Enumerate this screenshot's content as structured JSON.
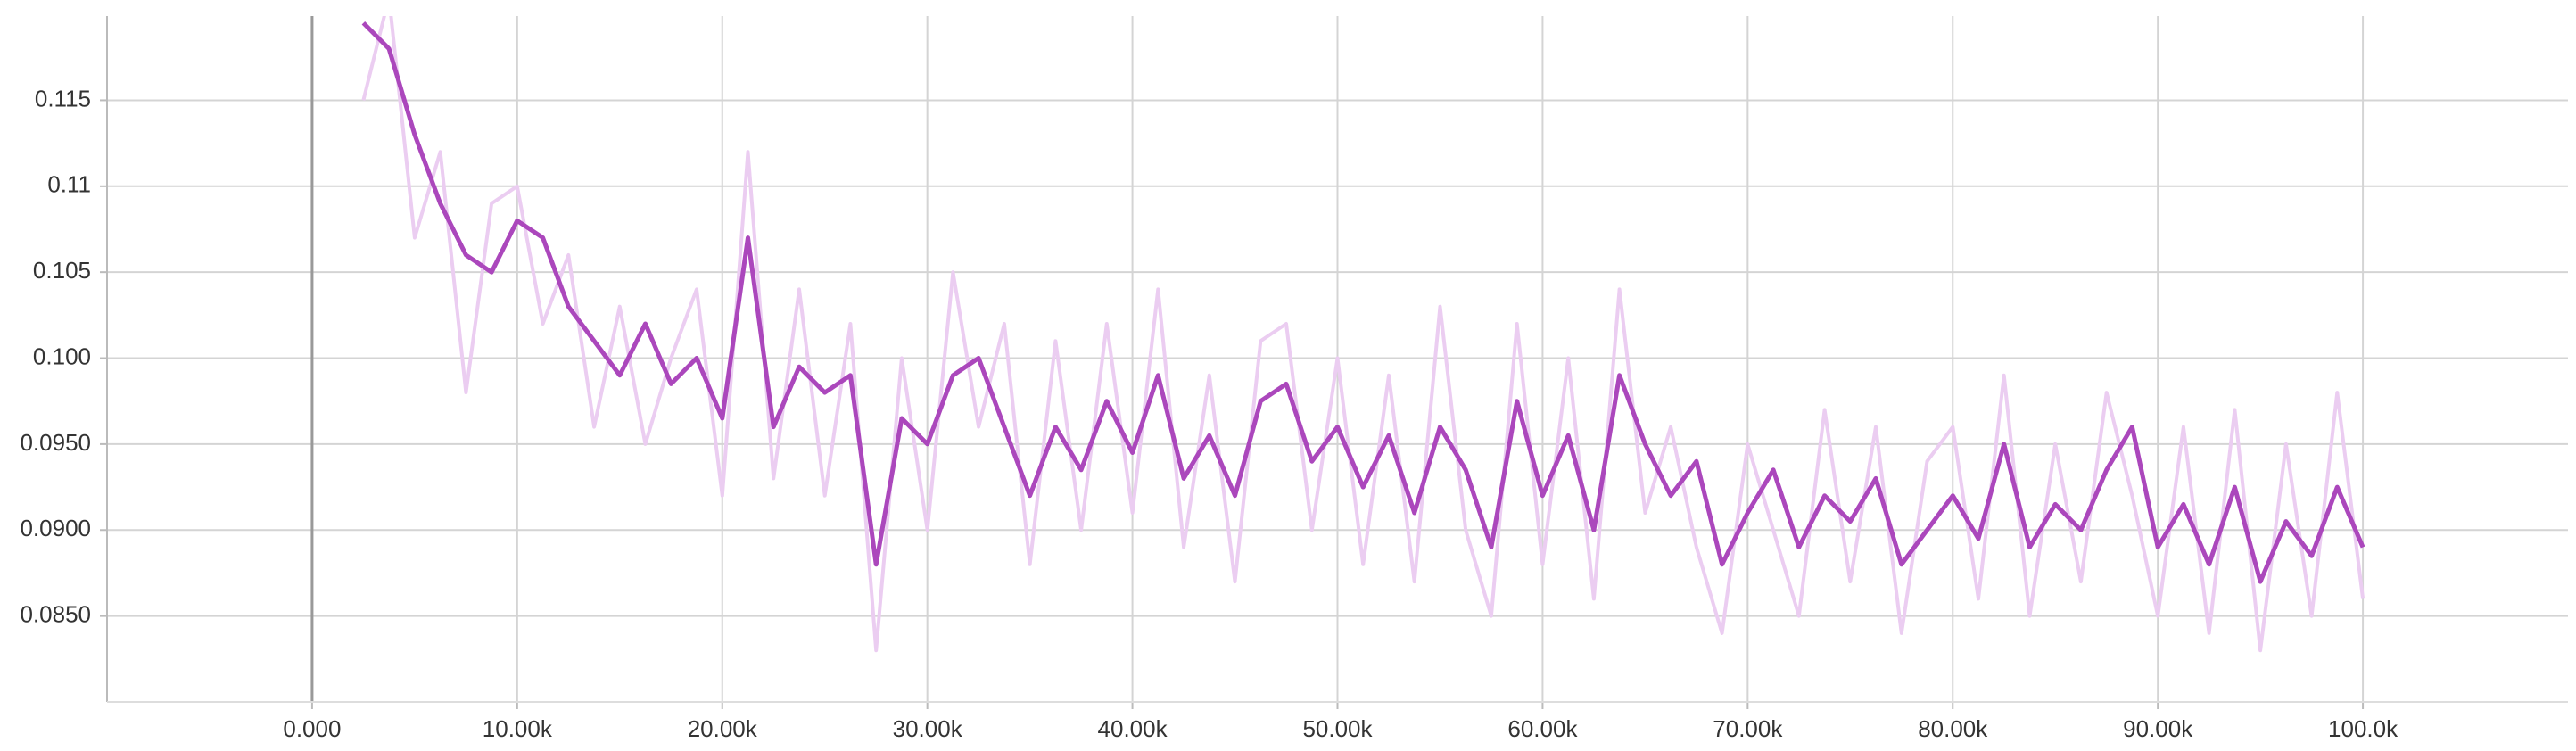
{
  "chart_data": {
    "type": "line",
    "x": [
      2500,
      3750,
      5000,
      6250,
      7500,
      8750,
      10000,
      11250,
      12500,
      13750,
      15000,
      16250,
      17500,
      18750,
      20000,
      21250,
      22500,
      23750,
      25000,
      26250,
      27500,
      28750,
      30000,
      31250,
      32500,
      33750,
      35000,
      36250,
      37500,
      38750,
      40000,
      41250,
      42500,
      43750,
      45000,
      46250,
      47500,
      48750,
      50000,
      51250,
      52500,
      53750,
      55000,
      56250,
      57500,
      58750,
      60000,
      61250,
      62500,
      63750,
      65000,
      66250,
      67500,
      68750,
      70000,
      71250,
      72500,
      73750,
      75000,
      76250,
      77500,
      78750,
      80000,
      81250,
      82500,
      83750,
      85000,
      86250,
      87500,
      88750,
      90000,
      91250,
      92500,
      93750,
      95000,
      96250,
      97500,
      98750,
      100000
    ],
    "series": [
      {
        "color": "#ebcdf1",
        "values": [
          0.115,
          0.121,
          0.107,
          0.112,
          0.098,
          0.109,
          0.11,
          0.102,
          0.106,
          0.096,
          0.103,
          0.095,
          0.1,
          0.104,
          0.092,
          0.112,
          0.093,
          0.104,
          0.092,
          0.102,
          0.083,
          0.1,
          0.09,
          0.105,
          0.096,
          0.102,
          0.088,
          0.101,
          0.09,
          0.102,
          0.091,
          0.104,
          0.089,
          0.099,
          0.087,
          0.101,
          0.102,
          0.09,
          0.1,
          0.088,
          0.099,
          0.087,
          0.103,
          0.09,
          0.085,
          0.102,
          0.088,
          0.1,
          0.086,
          0.104,
          0.091,
          0.096,
          0.089,
          0.084,
          0.095,
          0.09,
          0.085,
          0.097,
          0.087,
          0.096,
          0.084,
          0.094,
          0.096,
          0.086,
          0.099,
          0.085,
          0.095,
          0.087,
          0.098,
          0.092,
          0.085,
          0.096,
          0.084,
          0.097,
          0.083,
          0.095,
          0.085,
          0.098,
          0.086
        ]
      },
      {
        "color": "#ab47bc",
        "values": [
          0.1195,
          0.118,
          0.113,
          0.109,
          0.106,
          0.105,
          0.108,
          0.107,
          0.103,
          0.101,
          0.099,
          0.102,
          0.0985,
          0.1,
          0.0965,
          0.107,
          0.096,
          0.0995,
          0.098,
          0.099,
          0.088,
          0.0965,
          0.095,
          0.099,
          0.1,
          0.096,
          0.092,
          0.096,
          0.0935,
          0.0975,
          0.0945,
          0.099,
          0.093,
          0.0955,
          0.092,
          0.0975,
          0.0985,
          0.094,
          0.096,
          0.0925,
          0.0955,
          0.091,
          0.096,
          0.0935,
          0.089,
          0.0975,
          0.092,
          0.0955,
          0.09,
          0.099,
          0.095,
          0.092,
          0.094,
          0.088,
          0.091,
          0.0935,
          0.089,
          0.092,
          0.0905,
          0.093,
          0.088,
          0.09,
          0.092,
          0.0895,
          0.095,
          0.089,
          0.0915,
          0.09,
          0.0935,
          0.096,
          0.089,
          0.0915,
          0.088,
          0.0925,
          0.087,
          0.0905,
          0.0885,
          0.0925,
          0.089
        ]
      }
    ],
    "xlim": [
      -10000,
      110000
    ],
    "ylim": [
      0.08,
      0.1199
    ],
    "xticks": [
      {
        "value": 0,
        "label": "0.000"
      },
      {
        "value": 10000,
        "label": "10.00k"
      },
      {
        "value": 20000,
        "label": "20.00k"
      },
      {
        "value": 30000,
        "label": "30.00k"
      },
      {
        "value": 40000,
        "label": "40.00k"
      },
      {
        "value": 50000,
        "label": "50.00k"
      },
      {
        "value": 60000,
        "label": "60.00k"
      },
      {
        "value": 70000,
        "label": "70.00k"
      },
      {
        "value": 80000,
        "label": "80.00k"
      },
      {
        "value": 90000,
        "label": "90.00k"
      },
      {
        "value": 100000,
        "label": "100.0k"
      }
    ],
    "yticks": [
      {
        "value": 0.085,
        "label": "0.0850"
      },
      {
        "value": 0.09,
        "label": "0.0900"
      },
      {
        "value": 0.095,
        "label": "0.0950"
      },
      {
        "value": 0.1,
        "label": "0.100"
      },
      0.105,
      0.11,
      0.115
    ],
    "grid": true
  }
}
